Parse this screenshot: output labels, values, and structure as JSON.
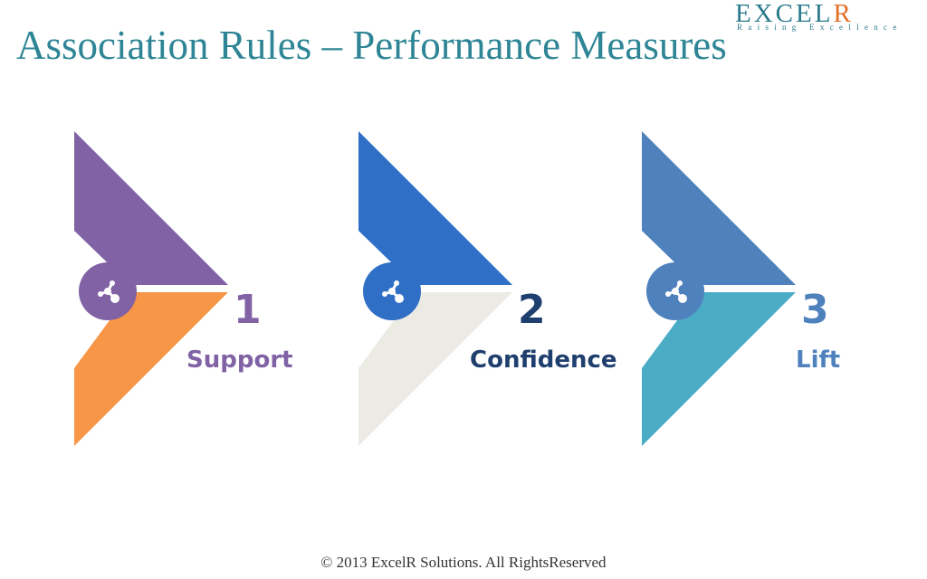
{
  "slide": {
    "title": "Association Rules – Performance Measures",
    "footer": "© 2013 ExcelR Solutions. All RightsReserved"
  },
  "logo": {
    "main": "EXCEL",
    "accent": "R",
    "tagline": "Raising Excellence"
  },
  "measures": [
    {
      "number": "1",
      "label": "Support",
      "icon": "share-network-icon",
      "colors": {
        "top": "#8062a5",
        "bottom": "#f79646",
        "text": "#8062a5"
      }
    },
    {
      "number": "2",
      "label": "Confidence",
      "icon": "share-network-icon",
      "colors": {
        "top": "#2f6fc5",
        "bottom": "#ebebe3",
        "text": "#1f3f6e"
      }
    },
    {
      "number": "3",
      "label": "Lift",
      "icon": "share-network-icon",
      "colors": {
        "top": "#4f81bd",
        "bottom": "#4bacc6",
        "text": "#4f81bd"
      }
    }
  ]
}
